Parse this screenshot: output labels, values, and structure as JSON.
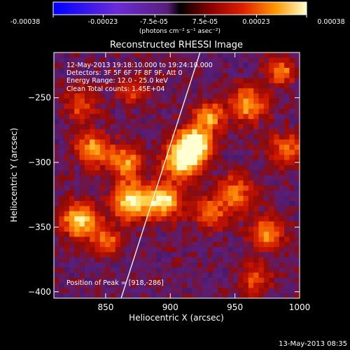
{
  "colorbar": {
    "tick_labels": [
      "-0.00038",
      "-0.00023",
      "-7.5e-05",
      "7.5e-05",
      "0.00023",
      "0.00038"
    ],
    "tick_values": [
      -0.00038,
      -0.00023,
      -7.5e-05,
      7.5e-05,
      0.00023,
      0.00038
    ],
    "range": [
      -0.00038,
      0.00038
    ],
    "units": "(photons cm⁻² s⁻¹ asec⁻²)"
  },
  "timestamp": "13-May-2013 08:35",
  "chart_data": {
    "type": "heatmap",
    "title": "Reconstructed RHESSI Image",
    "xlabel": "Heliocentric X (arcsec)",
    "ylabel": "Heliocentric Y (arcsec)",
    "xlim": [
      810,
      1000
    ],
    "ylim": [
      -405,
      -215
    ],
    "xticks": [
      850,
      900,
      950,
      1000
    ],
    "yticks": [
      -250,
      -300,
      -350,
      -400
    ],
    "xtick_labels": [
      "850",
      "900",
      "950",
      "1000"
    ],
    "ytick_labels": [
      "−250",
      "−300",
      "−350",
      "−400"
    ],
    "annotations": [
      "12-May-2013 19:18:10.000 to 19:24:10.000",
      "Detectors: 3F 5F 6F 7F 8F 9F, Att 0",
      "Energy Range: 12.0 - 25.0 keV",
      "Clean     Total counts: 1.45E+04"
    ],
    "peak_label": "Position of Peak = [918,-286]",
    "peak": [
      918,
      -286
    ],
    "limb_line": [
      [
        862,
        -405
      ],
      [
        923,
        -215
      ]
    ],
    "blobs": [
      {
        "x": 918,
        "y": -286,
        "amp": 1.0,
        "r": 9
      },
      {
        "x": 908,
        "y": -300,
        "amp": 0.7,
        "r": 10
      },
      {
        "x": 870,
        "y": -330,
        "amp": 0.8,
        "r": 10
      },
      {
        "x": 830,
        "y": -345,
        "amp": 0.75,
        "r": 9
      },
      {
        "x": 895,
        "y": -330,
        "amp": 0.75,
        "r": 9
      },
      {
        "x": 840,
        "y": -290,
        "amp": 0.6,
        "r": 9
      },
      {
        "x": 865,
        "y": -300,
        "amp": 0.55,
        "r": 9
      },
      {
        "x": 960,
        "y": -255,
        "amp": 0.55,
        "r": 10
      },
      {
        "x": 950,
        "y": -325,
        "amp": 0.5,
        "r": 10
      },
      {
        "x": 975,
        "y": -355,
        "amp": 0.5,
        "r": 9
      },
      {
        "x": 930,
        "y": -265,
        "amp": 0.55,
        "r": 8
      },
      {
        "x": 985,
        "y": -230,
        "amp": 0.55,
        "r": 7
      },
      {
        "x": 990,
        "y": -290,
        "amp": 0.45,
        "r": 9
      },
      {
        "x": 930,
        "y": -340,
        "amp": 0.45,
        "r": 8
      },
      {
        "x": 870,
        "y": -245,
        "amp": 0.35,
        "r": 8
      },
      {
        "x": 850,
        "y": -360,
        "amp": 0.45,
        "r": 8
      },
      {
        "x": 830,
        "y": -255,
        "amp": 0.35,
        "r": 9
      },
      {
        "x": 965,
        "y": -390,
        "amp": 0.35,
        "r": 9
      }
    ]
  }
}
